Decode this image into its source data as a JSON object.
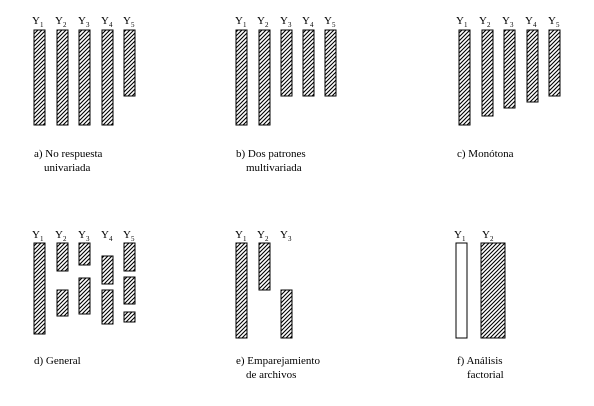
{
  "panels": [
    {
      "id": "a",
      "variables": [
        {
          "base": "Y",
          "sub": "1"
        },
        {
          "base": "Y",
          "sub": "2"
        },
        {
          "base": "Y",
          "sub": "3"
        },
        {
          "base": "Y",
          "sub": "4"
        },
        {
          "base": "Y",
          "sub": "5"
        }
      ],
      "caption": [
        "a) No respuesta",
        "univariada"
      ]
    },
    {
      "id": "b",
      "variables": [
        {
          "base": "Y",
          "sub": "1"
        },
        {
          "base": "Y",
          "sub": "2"
        },
        {
          "base": "Y",
          "sub": "3"
        },
        {
          "base": "Y",
          "sub": "4"
        },
        {
          "base": "Y",
          "sub": "5"
        }
      ],
      "caption": [
        "b) Dos patrones",
        "multivariada"
      ]
    },
    {
      "id": "c",
      "variables": [
        {
          "base": "Y",
          "sub": "1"
        },
        {
          "base": "Y",
          "sub": "2"
        },
        {
          "base": "Y",
          "sub": "3"
        },
        {
          "base": "Y",
          "sub": "4"
        },
        {
          "base": "Y",
          "sub": "5"
        }
      ],
      "caption": [
        "c) Monótona"
      ]
    },
    {
      "id": "d",
      "variables": [
        {
          "base": "Y",
          "sub": "1"
        },
        {
          "base": "Y",
          "sub": "2"
        },
        {
          "base": "Y",
          "sub": "3"
        },
        {
          "base": "Y",
          "sub": "4"
        },
        {
          "base": "Y",
          "sub": "5"
        }
      ],
      "caption": [
        "d) General"
      ]
    },
    {
      "id": "e",
      "variables": [
        {
          "base": "Y",
          "sub": "1"
        },
        {
          "base": "Y",
          "sub": "2"
        },
        {
          "base": "Y",
          "sub": "3"
        }
      ],
      "caption": [
        "e) Emparejamiento",
        "de archivos"
      ]
    },
    {
      "id": "f",
      "variables": [
        {
          "base": "Y",
          "sub": "1"
        },
        {
          "base": "Y",
          "sub": "2"
        }
      ],
      "caption": [
        "f) Análisis",
        "factorial"
      ]
    }
  ]
}
